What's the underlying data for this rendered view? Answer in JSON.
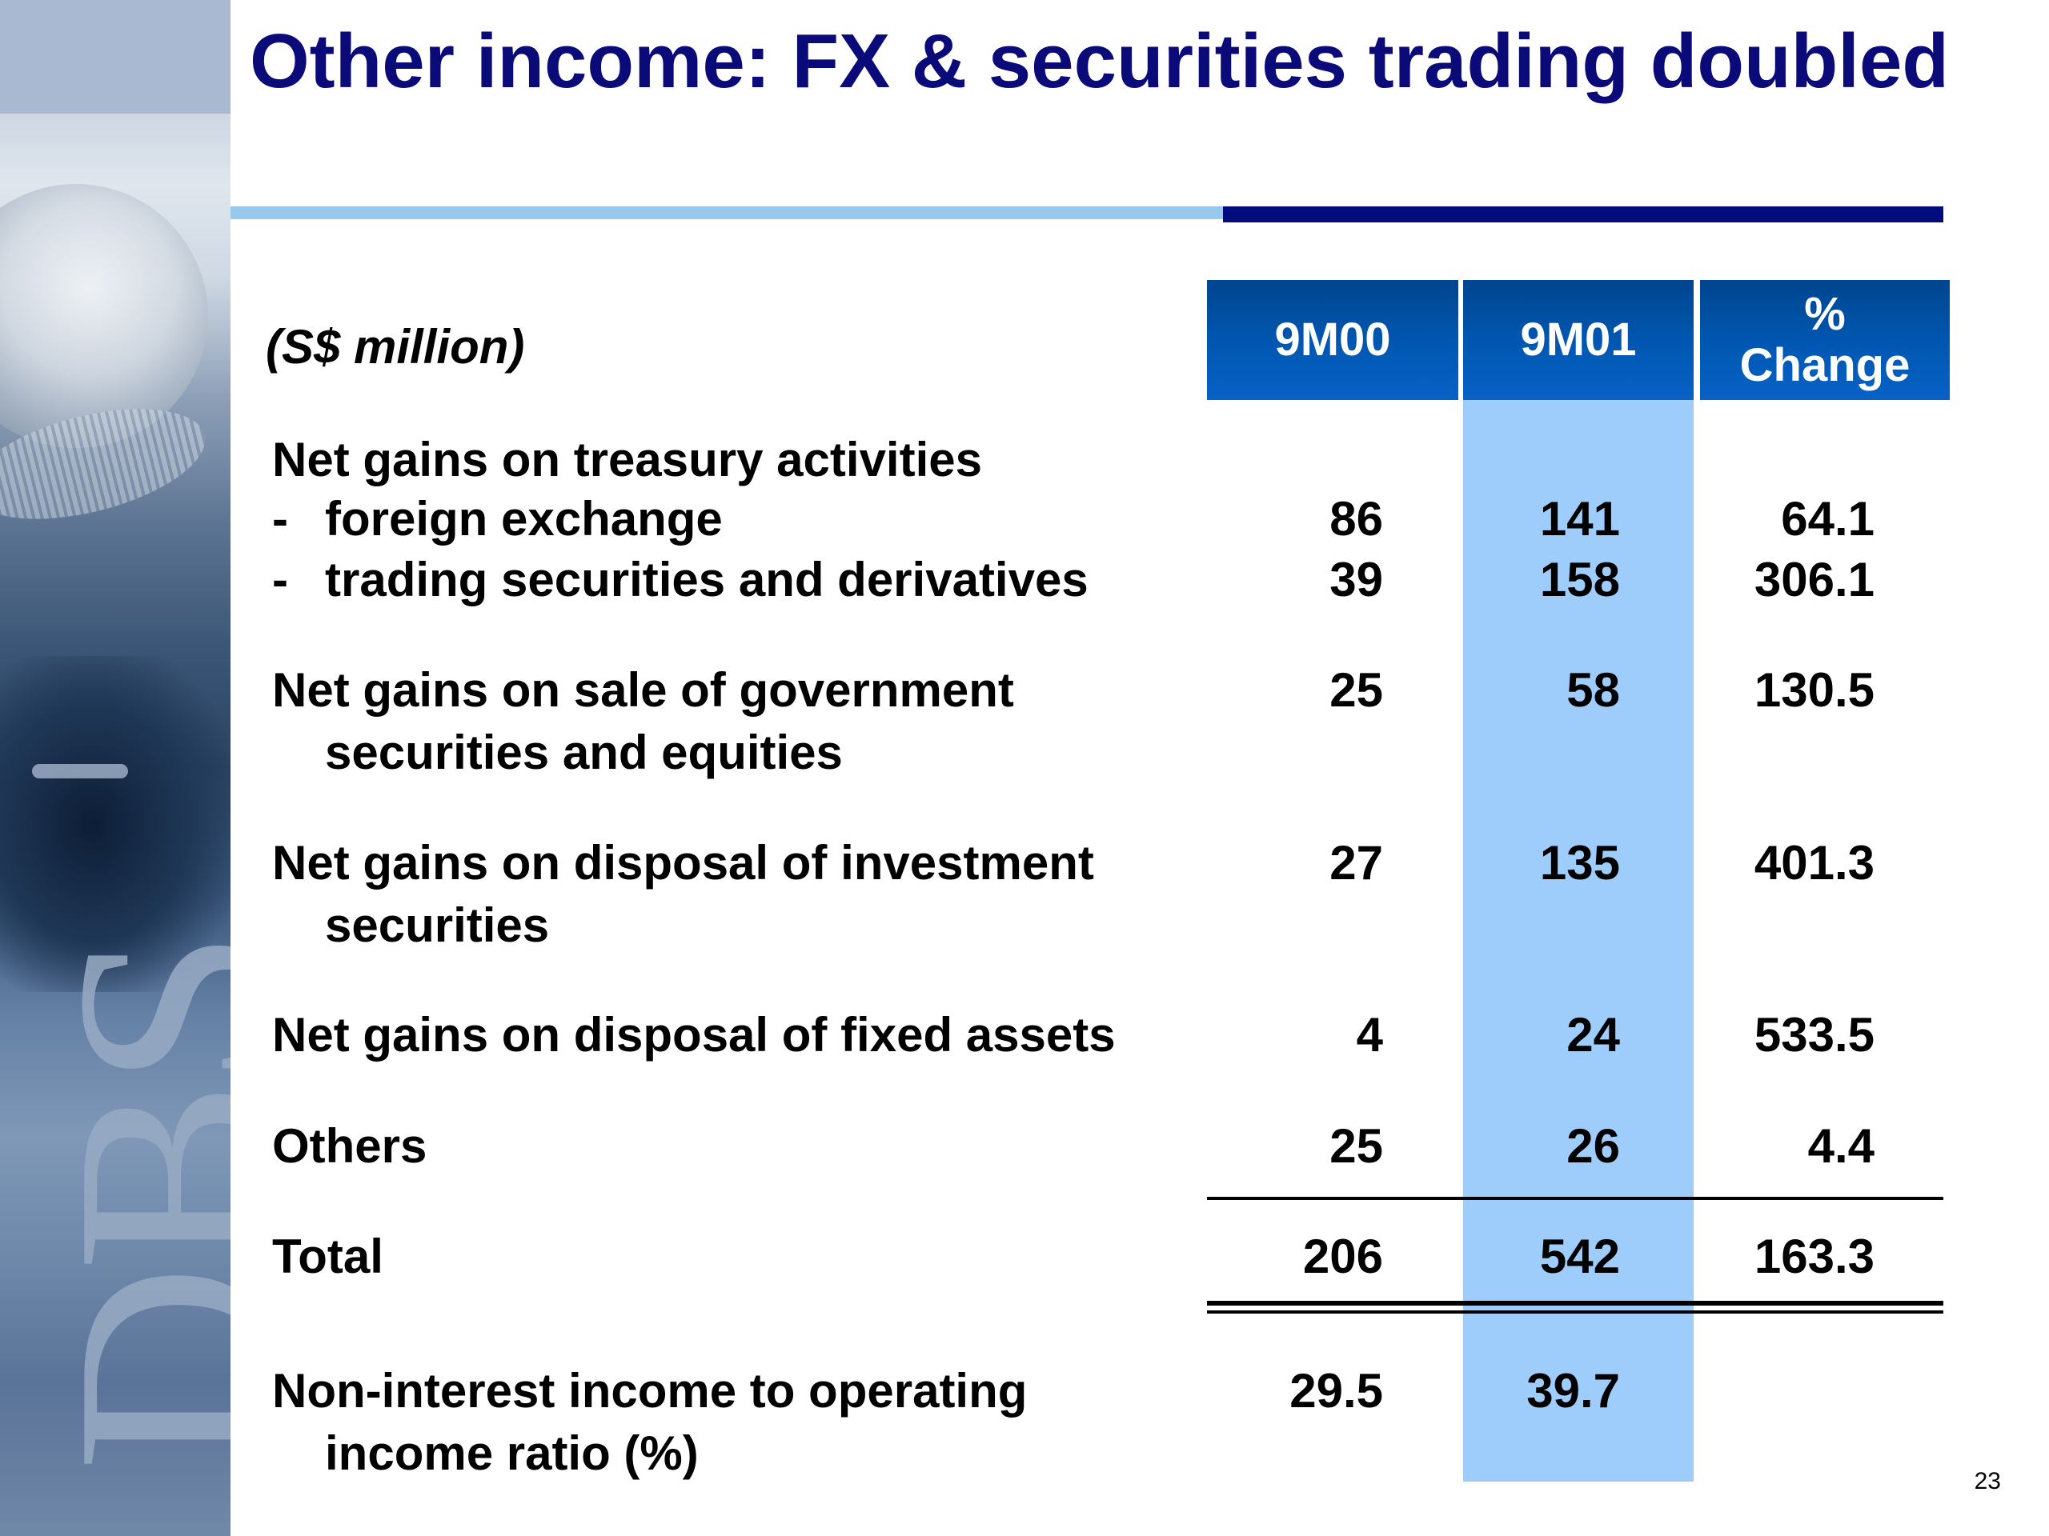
{
  "slide": {
    "title": "Other income: FX & securities trading doubled",
    "page_number": "23",
    "logo_text": "DBS"
  },
  "table": {
    "units_label": "(S$ million)",
    "headers": {
      "col1": "9M00",
      "col2": "9M01",
      "col3_line1": "%",
      "col3_line2": "Change"
    },
    "rows": [
      {
        "label": "Net gains on treasury activities"
      },
      {
        "dash": "-",
        "label": "foreign exchange",
        "v1": "86",
        "v2": "141",
        "v3": "64.1"
      },
      {
        "dash": "-",
        "label": "trading securities and derivatives",
        "v1": "39",
        "v2": "158",
        "v3": "306.1"
      },
      {
        "label": "Net gains on sale of government",
        "label_cont": "securities and equities",
        "v1": "25",
        "v2": "58",
        "v3": "130.5"
      },
      {
        "label": "Net gains on disposal of investment",
        "label_cont": "securities",
        "v1": "27",
        "v2": "135",
        "v3": "401.3"
      },
      {
        "label": "Net gains on disposal of fixed assets",
        "v1": "4",
        "v2": "24",
        "v3": "533.5"
      },
      {
        "label": "Others",
        "v1": "25",
        "v2": "26",
        "v3": "4.4"
      },
      {
        "label": "Total",
        "v1": "206",
        "v2": "542",
        "v3": "163.3"
      },
      {
        "label": "Non-interest income to operating",
        "label_cont": "income ratio (%)",
        "v1": "29.5",
        "v2": "39.7"
      }
    ]
  },
  "colors": {
    "title": "#0a0a78",
    "header_bg": "#0056b0",
    "highlight_column": "#9fcdfb",
    "rule_light": "#99c8ee",
    "rule_dark": "#000c7c"
  }
}
